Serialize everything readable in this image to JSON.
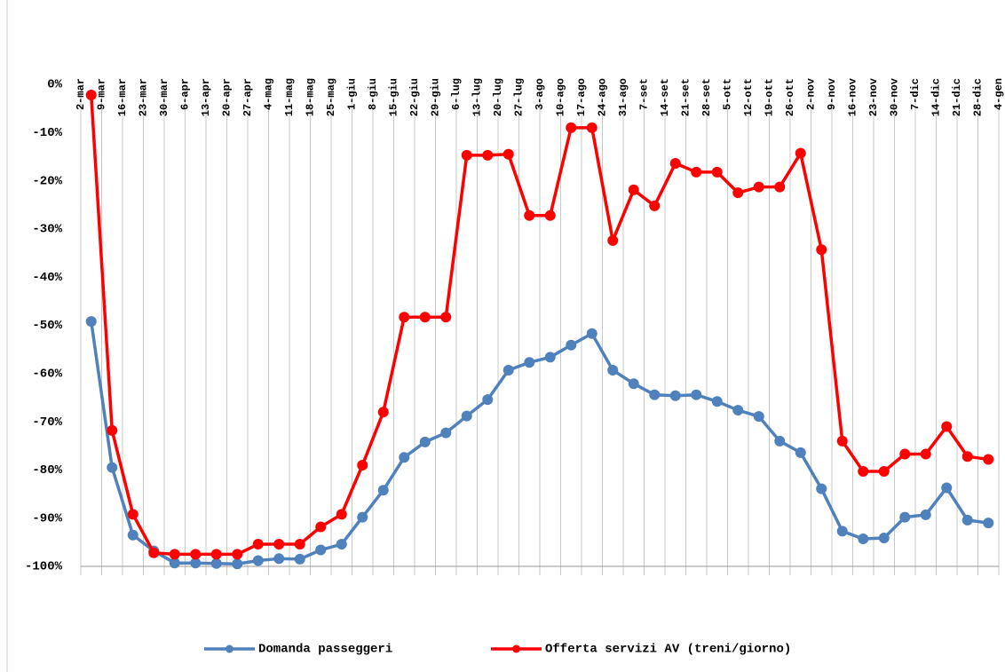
{
  "chart_data": {
    "type": "line",
    "categories": [
      "2-mar",
      "9-mar",
      "16-mar",
      "23-mar",
      "30-mar",
      "6-apr",
      "13-apr",
      "20-apr",
      "27-apr",
      "4-mag",
      "11-mag",
      "18-mag",
      "25-mag",
      "1-giu",
      "8-giu",
      "15-giu",
      "22-giu",
      "29-giu",
      "6-lug",
      "13-lug",
      "20-lug",
      "27-lug",
      "3-ago",
      "10-ago",
      "17-ago",
      "24-ago",
      "31-ago",
      "7-set",
      "14-set",
      "21-set",
      "28-set",
      "5-ott",
      "12-ott",
      "19-ott",
      "26-ott",
      "2-nov",
      "9-nov",
      "16-nov",
      "23-nov",
      "30-nov",
      "7-dic",
      "14-dic",
      "21-dic",
      "28-dic",
      "4-gen"
    ],
    "series": [
      {
        "name": "Domanda passeggeri",
        "color": "#4f81bd",
        "values": [
          -49.2,
          -79.5,
          -93.5,
          -96.8,
          -99.3,
          -99.3,
          -99.4,
          -99.5,
          -98.8,
          -98.4,
          -98.5,
          -96.6,
          -95.4,
          -89.8,
          -84.2,
          -77.4,
          -74.2,
          -72.3,
          -68.8,
          -65.4,
          -59.3,
          -57.7,
          -56.6,
          -54.1,
          -51.7,
          -59.3,
          -62.1,
          -64.4,
          -64.6,
          -64.4,
          -65.8,
          -67.6,
          -68.9,
          -74.0,
          -76.4,
          -83.9,
          -92.7,
          -94.3,
          -94.1,
          -89.8,
          -89.3,
          -83.7,
          -90.4,
          -91.0,
          null
        ]
      },
      {
        "name": "Offerta servizi AV (treni/giorno)",
        "color": "#ff0000",
        "values": [
          -2.2,
          -71.8,
          -89.2,
          -97.2,
          -97.5,
          -97.5,
          -97.5,
          -97.5,
          -95.4,
          -95.4,
          -95.4,
          -91.8,
          -89.2,
          -79.0,
          -68.0,
          -48.3,
          -48.3,
          -48.3,
          -14.7,
          -14.7,
          -14.5,
          -27.2,
          -27.2,
          -9.0,
          -9.0,
          -32.4,
          -21.9,
          -25.2,
          -16.4,
          -18.2,
          -18.2,
          -22.5,
          -21.3,
          -21.3,
          -14.3,
          -34.3,
          -74.0,
          -80.3,
          -80.3,
          -76.7,
          -76.7,
          -71.0,
          -77.2,
          -77.8,
          null
        ]
      }
    ],
    "ylim": [
      -100,
      0
    ],
    "yticks": [
      {
        "value": 0,
        "label": "0%"
      },
      {
        "value": -10,
        "label": "-10%"
      },
      {
        "value": -20,
        "label": "-20%"
      },
      {
        "value": -30,
        "label": "-30%"
      },
      {
        "value": -40,
        "label": "-40%"
      },
      {
        "value": -50,
        "label": "-50%"
      },
      {
        "value": -60,
        "label": "-60%"
      },
      {
        "value": -70,
        "label": "-70%"
      },
      {
        "value": -80,
        "label": "-80%"
      },
      {
        "value": -90,
        "label": "-90%"
      },
      {
        "value": -100,
        "label": "-100%"
      }
    ],
    "grid": false,
    "legend": "bottom"
  }
}
